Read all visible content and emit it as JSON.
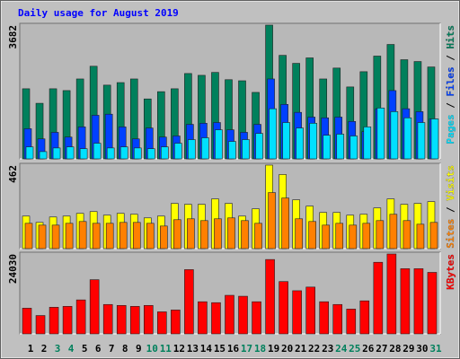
{
  "title": "Daily usage for August 2019",
  "categories": [
    "1",
    "2",
    "3",
    "4",
    "5",
    "6",
    "7",
    "8",
    "9",
    "10",
    "11",
    "12",
    "13",
    "14",
    "15",
    "16",
    "17",
    "18",
    "19",
    "20",
    "21",
    "22",
    "23",
    "24",
    "25",
    "26",
    "27",
    "28",
    "29",
    "30",
    "31"
  ],
  "category_colors": [
    "#000000",
    "#000000",
    "#00805c",
    "#00805c",
    "#000000",
    "#000000",
    "#000000",
    "#000000",
    "#000000",
    "#00805c",
    "#00805c",
    "#000000",
    "#000000",
    "#000000",
    "#000000",
    "#000000",
    "#00805c",
    "#00805c",
    "#000000",
    "#000000",
    "#000000",
    "#000000",
    "#000000",
    "#00805c",
    "#00805c",
    "#000000",
    "#000000",
    "#000000",
    "#000000",
    "#000000",
    "#00805c"
  ],
  "legend_separator": "/",
  "chart_data": [
    {
      "type": "bar",
      "ylim": [
        0,
        3682
      ],
      "yticks": [
        3682
      ],
      "series": [
        {
          "name": "Hits",
          "color": "#00805c",
          "values": [
            1930,
            1530,
            1930,
            1880,
            2200,
            2550,
            2030,
            2100,
            2200,
            1650,
            1850,
            1930,
            2350,
            2300,
            2380,
            2180,
            2150,
            1830,
            3682,
            2850,
            2630,
            2780,
            2200,
            2500,
            1980,
            2400,
            2830,
            3150,
            2730,
            2680,
            2530
          ]
        },
        {
          "name": "Files",
          "color": "#0040ff",
          "values": [
            830,
            550,
            730,
            600,
            880,
            1200,
            1230,
            880,
            550,
            850,
            600,
            630,
            950,
            980,
            1000,
            800,
            730,
            950,
            2200,
            1500,
            1280,
            1150,
            1130,
            1150,
            1030,
            750,
            1380,
            1880,
            1380,
            1300,
            1100
          ]
        },
        {
          "name": "Pages",
          "color": "#00e0ff",
          "values": [
            330,
            200,
            300,
            330,
            280,
            430,
            300,
            330,
            300,
            280,
            330,
            430,
            530,
            580,
            800,
            480,
            530,
            700,
            1380,
            1000,
            850,
            980,
            650,
            680,
            630,
            880,
            1400,
            1300,
            1130,
            1000,
            1100
          ]
        }
      ]
    },
    {
      "type": "bar",
      "ylim": [
        0,
        462
      ],
      "yticks": [
        462
      ],
      "series": [
        {
          "name": "Visits",
          "color": "#ffff00",
          "values": [
            180,
            145,
            175,
            180,
            195,
            205,
            185,
            195,
            190,
            170,
            180,
            250,
            245,
            245,
            275,
            250,
            180,
            220,
            462,
            410,
            270,
            235,
            200,
            200,
            185,
            190,
            225,
            275,
            245,
            250,
            260
          ]
        },
        {
          "name": "Sites",
          "color": "#ff8000",
          "values": [
            140,
            130,
            130,
            140,
            150,
            140,
            140,
            145,
            145,
            140,
            125,
            160,
            165,
            155,
            165,
            170,
            155,
            140,
            310,
            280,
            165,
            150,
            130,
            140,
            130,
            140,
            155,
            190,
            155,
            135,
            145
          ]
        }
      ]
    },
    {
      "type": "bar",
      "ylim": [
        0,
        24030
      ],
      "yticks": [
        24030
      ],
      "series": [
        {
          "name": "KBytes",
          "color": "#ff0000",
          "values": [
            7730,
            5520,
            8010,
            8280,
            10220,
            16300,
            8840,
            8560,
            8280,
            8560,
            6630,
            7180,
            19330,
            9670,
            9390,
            11600,
            11320,
            9670,
            22370,
            15740,
            12980,
            14080,
            9670,
            8840,
            7460,
            9940,
            21540,
            24030,
            19610,
            19610,
            18500
          ]
        }
      ]
    }
  ]
}
